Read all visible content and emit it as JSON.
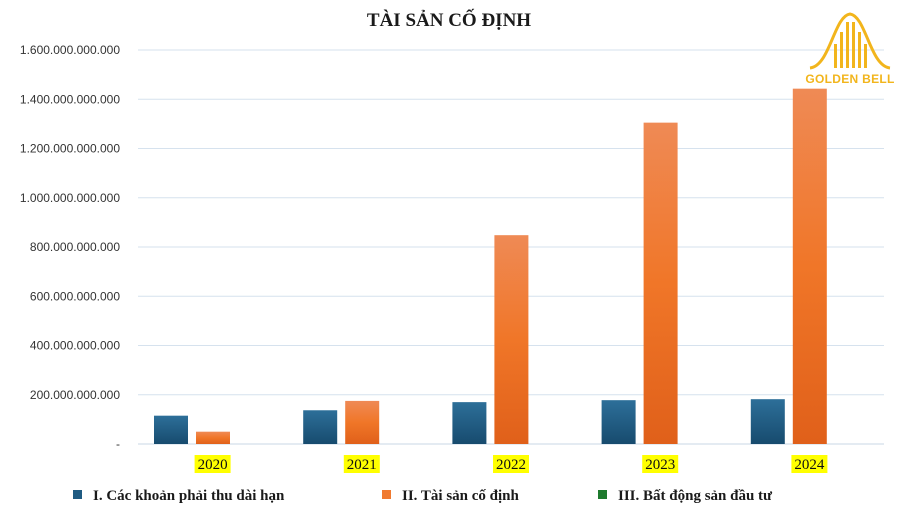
{
  "chart_data": {
    "type": "bar",
    "title": "TÀI SẢN CỐ ĐỊNH",
    "categories": [
      "2020",
      "2021",
      "2022",
      "2023",
      "2024"
    ],
    "series": [
      {
        "name": "I. Các khoản phải thu dài hạn",
        "values": [
          115000000000,
          137000000000,
          170000000000,
          178000000000,
          182000000000
        ],
        "color": "#1f5b82"
      },
      {
        "name": "II. Tài sản cố định",
        "values": [
          50000000000,
          175000000000,
          848000000000,
          1305000000000,
          1443000000000
        ],
        "color": "#f07a30"
      },
      {
        "name": "III. Bất động sản đầu tư",
        "values": [
          0,
          0,
          0,
          0,
          0
        ],
        "color": "#1e7a2e"
      }
    ],
    "yticks": [
      "-",
      "200.000.000.000",
      "400.000.000.000",
      "600.000.000.000",
      "800.000.000.000",
      "1.000.000.000.000",
      "1.200.000.000.000",
      "1.400.000.000.000",
      "1.600.000.000.000"
    ],
    "ylim": [
      0,
      1600000000000
    ],
    "grid": true,
    "legend": "bottom",
    "category_highlight_color": "#ffff00"
  },
  "logo": {
    "text": "GOLDEN BELL",
    "color": "#f2b51c"
  }
}
